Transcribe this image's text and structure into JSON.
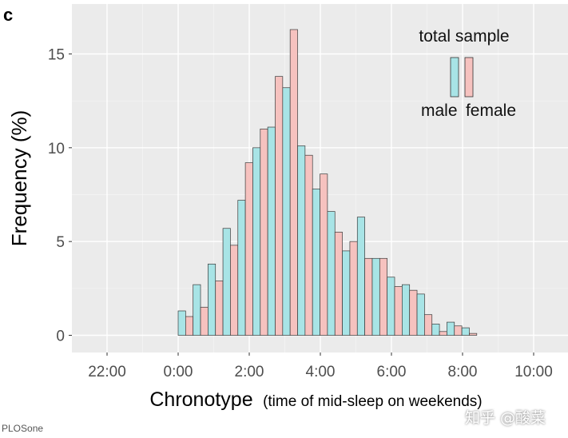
{
  "panel_label": "c",
  "source_label": "PLOSone",
  "watermark": "知乎 @酸菜",
  "chart_data": {
    "type": "bar",
    "xlabel_main": "Chronotype",
    "xlabel_detail": "(time of mid-sleep on weekends)",
    "ylabel": "Frequency (%)",
    "legend_title": "total sample",
    "legend_position": "top-right",
    "grid": true,
    "x_unit": "hours after midnight",
    "xlim": [
      -2.5,
      10.5
    ],
    "ylim": [
      -1,
      17
    ],
    "x_ticks": [
      {
        "value": -2,
        "label": "22:00"
      },
      {
        "value": 0,
        "label": "0:00"
      },
      {
        "value": 2,
        "label": "2:00"
      },
      {
        "value": 4,
        "label": "4:00"
      },
      {
        "value": 6,
        "label": "6:00"
      },
      {
        "value": 8,
        "label": "8:00"
      },
      {
        "value": 10,
        "label": "10:00"
      }
    ],
    "y_ticks": [
      {
        "value": 0,
        "label": "0"
      },
      {
        "value": 5,
        "label": "5"
      },
      {
        "value": 10,
        "label": "10"
      },
      {
        "value": 15,
        "label": "15"
      }
    ],
    "bin_width_hours": 0.42,
    "x": [
      0.0,
      0.42,
      0.84,
      1.26,
      1.68,
      2.1,
      2.52,
      2.94,
      3.36,
      3.78,
      4.2,
      4.62,
      5.04,
      5.46,
      5.88,
      6.3,
      6.72,
      7.14,
      7.56,
      7.98,
      8.4,
      8.82,
      9.24
    ],
    "series": [
      {
        "name": "male",
        "color": "#a8e4e6",
        "values": [
          1.3,
          2.7,
          3.8,
          5.7,
          7.2,
          10.0,
          11.1,
          13.2,
          10.1,
          7.8,
          6.6,
          4.5,
          6.3,
          4.1,
          3.1,
          2.7,
          2.2,
          0.6,
          0.7,
          0.4,
          0.0,
          0.0,
          0.0
        ]
      },
      {
        "name": "female",
        "color": "#f6c2bf",
        "values": [
          1.0,
          1.5,
          2.9,
          4.8,
          9.2,
          11.0,
          13.8,
          16.3,
          9.6,
          8.6,
          5.5,
          5.0,
          4.1,
          4.1,
          2.6,
          2.4,
          1.1,
          0.2,
          0.5,
          0.1,
          0.0,
          0.0,
          0.0
        ]
      }
    ]
  }
}
